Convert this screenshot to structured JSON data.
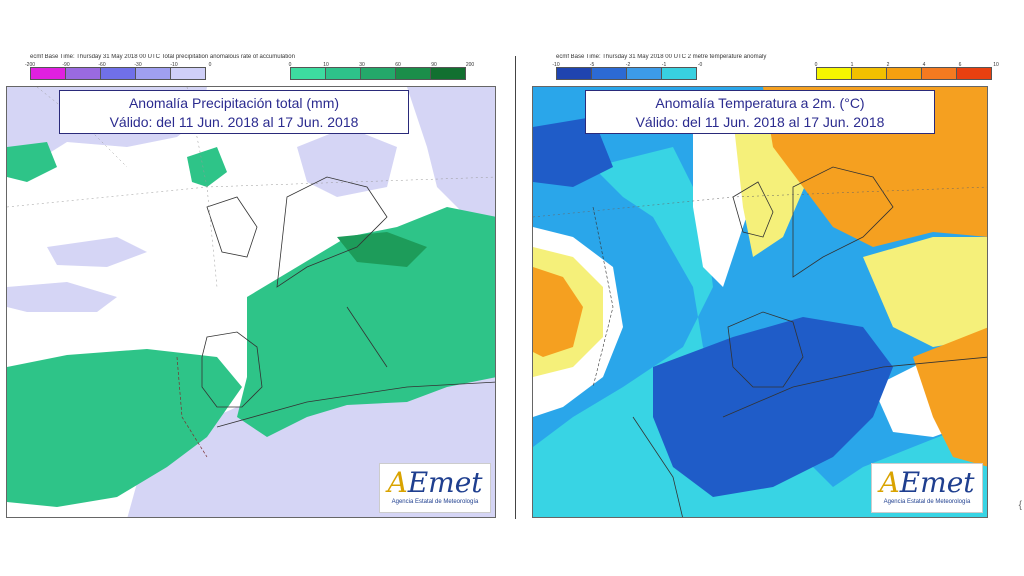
{
  "left_panel": {
    "header": "ecmf  Base Time: Thursday 31 May 2018 00 UTC  Total precipitation anomalous rate of accumulation",
    "title_line1": "Anomalía Precipitación total (mm)",
    "title_line2": "Válido: del 11 Jun. 2018 al 17 Jun. 2018",
    "neg_ticks": [
      "-200",
      "-90",
      "-60",
      "-30",
      "-10",
      "0"
    ],
    "pos_ticks": [
      "0",
      "10",
      "30",
      "60",
      "90",
      "200"
    ],
    "neg_colors": [
      "#e020e0",
      "#9a6ae0",
      "#7070e8",
      "#9f9ff0",
      "#cfcff8"
    ],
    "pos_colors": [
      "#3ddca0",
      "#2ec28a",
      "#24a86a",
      "#1b8e4a",
      "#127030"
    ],
    "map_colors": {
      "background": "#ffffff",
      "negative": "#d5d5f5",
      "positive": "#2ec488",
      "positive_dark": "#1d9c5a"
    },
    "logo_sub": "Agencia Estatal de Meteorología"
  },
  "right_panel": {
    "header": "ecmf  Base Time: Thursday 31 May 2018 00 UTC  2 metre temperature anomaly",
    "title_line1": "Anomalía Temperatura a 2m. (°C)",
    "title_line2": "Válido: del 11 Jun. 2018 al 17 Jun. 2018",
    "neg_ticks": [
      "-10",
      "-5",
      "-2",
      "-1",
      "-0"
    ],
    "pos_ticks": [
      "0",
      "1",
      "2",
      "4",
      "6",
      "10"
    ],
    "neg_colors": [
      "#1f44b0",
      "#2c6ad4",
      "#3c9be8",
      "#38d0e0"
    ],
    "pos_colors": [
      "#f5f500",
      "#f2c000",
      "#f5a010",
      "#f47a20",
      "#e84010"
    ],
    "map_colors": {
      "background": "#2aa6ea",
      "cyan": "#38d4e4",
      "dark_blue": "#1f5cc8",
      "white": "#ffffff",
      "yellow": "#f5f07a",
      "orange": "#f5a020"
    },
    "logo_sub": "Agencia Estatal de Meteorología"
  },
  "logo": {
    "a": "A",
    "rest": "Emet"
  },
  "corner_mark": "{"
}
